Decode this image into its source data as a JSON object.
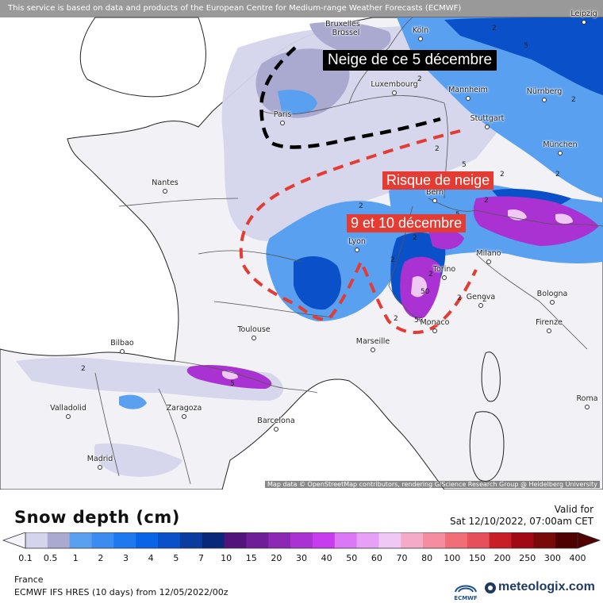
{
  "header": {
    "notice": "This service is based on data and products of the European Centre for Medium-range Weather Forecasts (ECMWF)"
  },
  "map": {
    "credit": "Map data © OpenStreetMap contributors, rendering GIScience Research Group @ Heidelberg University",
    "cities": [
      {
        "name": "Bruxelles",
        "key": "bruxelles"
      },
      {
        "name": "Brussel",
        "key": "brussel"
      },
      {
        "name": "Köln",
        "key": "koln"
      },
      {
        "name": "Leipzig",
        "key": "leipzig"
      },
      {
        "name": "Luxembourg",
        "key": "luxembourg"
      },
      {
        "name": "Mannheim",
        "key": "mannheim"
      },
      {
        "name": "Nürnberg",
        "key": "nurnberg"
      },
      {
        "name": "Paris",
        "key": "paris"
      },
      {
        "name": "Stuttgart",
        "key": "stuttgart"
      },
      {
        "name": "München",
        "key": "munchen"
      },
      {
        "name": "Nantes",
        "key": "nantes"
      },
      {
        "name": "Bern",
        "key": "bern"
      },
      {
        "name": "Lyon",
        "key": "lyon"
      },
      {
        "name": "Milano",
        "key": "milano"
      },
      {
        "name": "Torino",
        "key": "torino"
      },
      {
        "name": "Genova",
        "key": "genova"
      },
      {
        "name": "Bologna",
        "key": "bologna"
      },
      {
        "name": "Monaco",
        "key": "monaco"
      },
      {
        "name": "Firenze",
        "key": "firenze"
      },
      {
        "name": "Toulouse",
        "key": "toulouse"
      },
      {
        "name": "Marseille",
        "key": "marseille"
      },
      {
        "name": "Bilbao",
        "key": "bilbao"
      },
      {
        "name": "Valladolid",
        "key": "valladolid"
      },
      {
        "name": "Zaragoza",
        "key": "zaragoza"
      },
      {
        "name": "Barcelona",
        "key": "barcelona"
      },
      {
        "name": "Roma",
        "key": "roma"
      },
      {
        "name": "Madrid",
        "key": "madrid"
      }
    ],
    "contour_labels": [
      "2",
      "5",
      "2",
      "2",
      "2",
      "5",
      "2",
      "2",
      "2",
      "2",
      "2",
      "5",
      "2",
      "2",
      "50",
      "2",
      "2",
      "50",
      "2",
      "5",
      "2"
    ],
    "annotations": {
      "black_box": "Neige de ce 5 décembre",
      "red_box_1": "Risque de neige",
      "red_box_2": "9 et 10 décembre"
    }
  },
  "legend": {
    "title": "Snow depth (cm)",
    "valid_label": "Valid for",
    "valid_time": "Sat 12/10/2022, 07:00am CET",
    "ticks": [
      "0.1",
      "0.5",
      "1",
      "2",
      "3",
      "4",
      "5",
      "7",
      "10",
      "15",
      "20",
      "30",
      "40",
      "50",
      "60",
      "70",
      "80",
      "100",
      "150",
      "200",
      "250",
      "300",
      "400"
    ],
    "colors": [
      "#d4d4ec",
      "#aaaad0",
      "#5aa0f0",
      "#3c8cf0",
      "#1e78f0",
      "#0a64e6",
      "#0a50c8",
      "#0a3ca0",
      "#0a287a",
      "#50147a",
      "#6e1e96",
      "#8c28b4",
      "#aa32d2",
      "#c83cf0",
      "#dc78f5",
      "#e6a0f5",
      "#f0c8f5",
      "#f5aac8",
      "#f58ca0",
      "#f06e78",
      "#e6505a",
      "#c81e28",
      "#a00a14",
      "#780a0a",
      "#500000"
    ]
  },
  "footer": {
    "region": "France",
    "model": "ECMWF IFS HRES (10 days) from 12/05/2022/00z",
    "ecmwf_logo": "ECMWF",
    "brand": "meteologix.com"
  }
}
